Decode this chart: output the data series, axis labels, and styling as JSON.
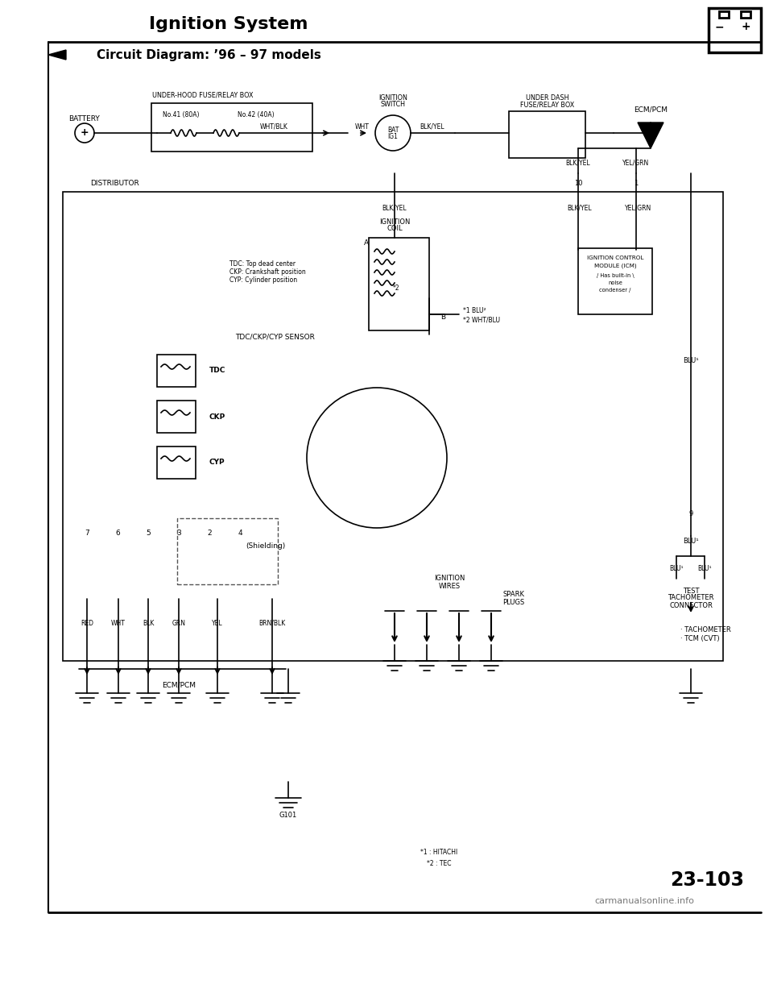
{
  "title": "Ignition System",
  "subtitle": "Circuit Diagram: ’96 – 97 models",
  "page_number": "23-103",
  "watermark": "carmanualsonline.info",
  "footnotes": [
    "*1 : HITACHI",
    "*2 : TEC"
  ],
  "background_color": "#ffffff",
  "line_color": "#000000",
  "text_color": "#000000"
}
